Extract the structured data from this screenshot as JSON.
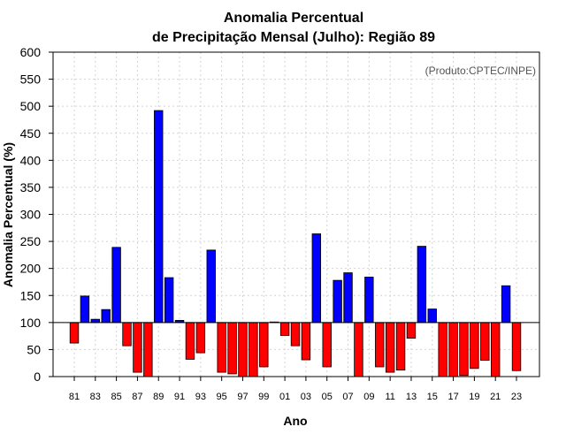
{
  "chart_data": {
    "type": "bar",
    "title_line1": "Anomalia Percentual",
    "title_line2": "de Precipitação Mensal (Julho): Região 89",
    "xlabel": "Ano",
    "ylabel": "Anomalia Percentual (%)",
    "credit": "(Produto:CPTEC/INPE)",
    "baseline": 100,
    "ylim": [
      0,
      600
    ],
    "yticks": [
      0,
      50,
      100,
      150,
      200,
      250,
      300,
      350,
      400,
      450,
      500,
      550,
      600
    ],
    "grid": true,
    "colors": {
      "above": "#0000ff",
      "below": "#ff0000",
      "edge": "#000000",
      "grid": "#d3d3d3"
    },
    "categories": [
      "81",
      "82",
      "83",
      "84",
      "85",
      "86",
      "87",
      "88",
      "89",
      "90",
      "91",
      "92",
      "93",
      "94",
      "95",
      "96",
      "97",
      "98",
      "99",
      "00",
      "01",
      "02",
      "03",
      "04",
      "05",
      "06",
      "07",
      "08",
      "09",
      "10",
      "11",
      "12",
      "13",
      "14",
      "15",
      "16",
      "17",
      "18",
      "19",
      "20",
      "21",
      "22",
      "23"
    ],
    "xtick_labels": [
      "81",
      "83",
      "85",
      "87",
      "89",
      "91",
      "93",
      "95",
      "97",
      "99",
      "01",
      "03",
      "05",
      "07",
      "09",
      "11",
      "13",
      "15",
      "17",
      "19",
      "21",
      "23"
    ],
    "values": [
      62,
      149,
      106,
      124,
      239,
      57,
      8,
      0,
      492,
      183,
      104,
      32,
      44,
      234,
      8,
      5,
      0,
      0,
      18,
      101,
      76,
      57,
      31,
      264,
      18,
      178,
      192,
      0,
      184,
      18,
      8,
      12,
      71,
      241,
      125,
      0,
      0,
      2,
      15,
      30,
      0,
      168,
      11
    ]
  }
}
